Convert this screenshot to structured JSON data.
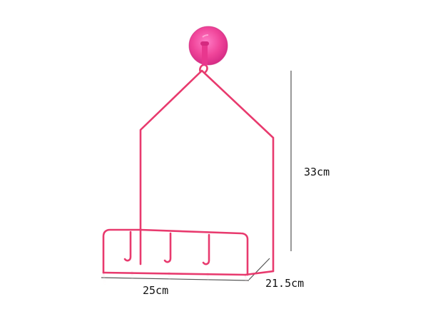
{
  "product": {
    "rack_color": "#e83a6e",
    "suction_cup_color": "#f0459a",
    "dimension_line_color": "#555555"
  },
  "dimensions": {
    "height": "33cm",
    "width": "25cm",
    "depth": "21.5cm"
  }
}
